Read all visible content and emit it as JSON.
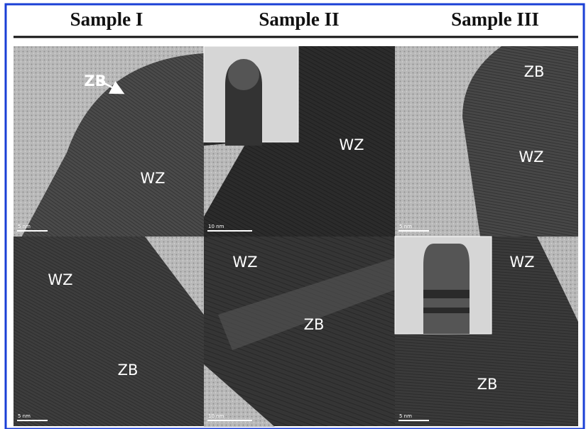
{
  "columns": [
    "Sample I",
    "Sample II",
    "Sample III"
  ],
  "panels": [
    {
      "labels": [
        "ZB",
        "WZ"
      ],
      "scale_bar": "5 nm"
    },
    {
      "labels": [
        "WZ"
      ],
      "scale_bar": "10 nm"
    },
    {
      "labels": [
        "ZB",
        "WZ"
      ],
      "scale_bar": "5 nm"
    },
    {
      "labels": [
        "WZ",
        "ZB"
      ],
      "scale_bar": "5 nm"
    },
    {
      "labels": [
        "WZ",
        "ZB"
      ],
      "scale_bar": "10 nm"
    },
    {
      "labels": [
        "WZ",
        "ZB"
      ],
      "scale_bar": "5 nm"
    }
  ]
}
